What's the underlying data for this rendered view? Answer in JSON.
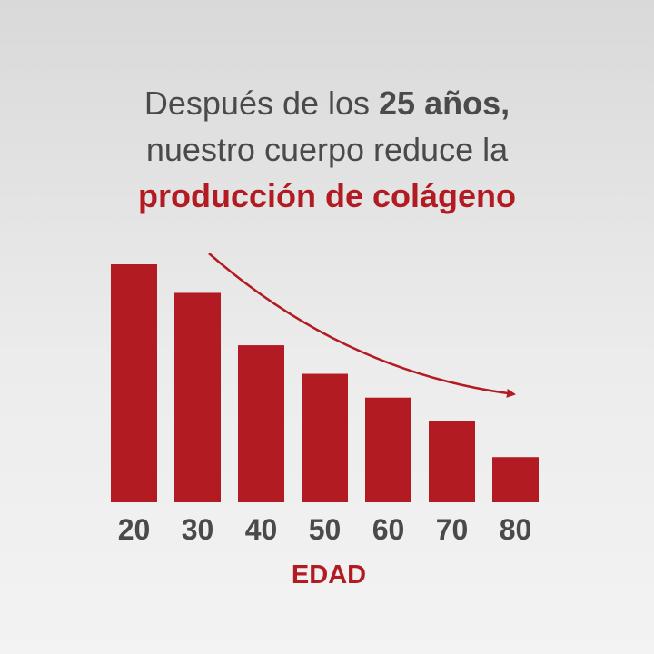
{
  "headline": {
    "line1_pre": "Después de los ",
    "line1_bold": "25 años,",
    "line2": "nuestro cuerpo reduce la",
    "line3": "producción de colágeno"
  },
  "colors": {
    "bar": "#b31b22",
    "text": "#4a4a4a",
    "accent": "#b31b22"
  },
  "chart_data": {
    "type": "bar",
    "categories": [
      "20",
      "30",
      "40",
      "50",
      "60",
      "70",
      "80"
    ],
    "values": [
      100,
      88,
      66,
      54,
      44,
      34,
      19
    ],
    "xlabel": "EDAD",
    "ylabel": "",
    "ylim": [
      0,
      100
    ],
    "annotations": [
      "downward-trend-arrow"
    ]
  }
}
